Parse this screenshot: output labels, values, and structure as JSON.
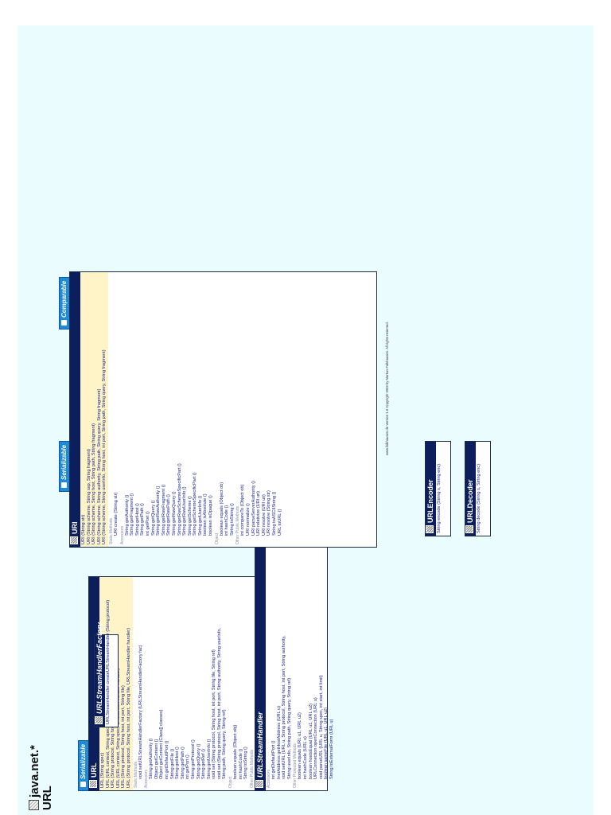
{
  "title": {
    "line1": "java.net.*",
    "line2": "URL"
  },
  "interfaces": {
    "serializable": "Serializable",
    "comparable": "Comparable"
  },
  "url_class": {
    "name": "URL",
    "constructors": [
      "URL (String spec)",
      "URL (URL context, String spec)",
      "URL (String protocol, String host, String file)",
      "URL (URL context, String spec, URLStreamHandler handler)",
      "URL (String protocol, String host, int port, String file)",
      "URL (String protocol, String host, int port, String file, URLStreamHandler handler)"
    ],
    "static_label": "Static Methods",
    "static_methods": [
      "void  setURLStreamHandlerFactory (URLStreamHandlerFactory fac)"
    ],
    "accessors_label": "Accessors",
    "accessors": [
      "String  getAuthority ()",
      "Object  getContent ()",
      "Object  getContent (Class[] classes)",
      "int  getDefaultPort ()",
      "String  getFile ()",
      "String  getHost ()",
      "String  getPath ()",
      "int  getPort ()",
      "String  getProtocol ()",
      "String  getQuery ()",
      "String  getRef ()",
      "String  getUserInfo ()",
      "void  set (String protocol, String host, int port, String file, String ref)",
      "void  set (String protocol, String host, int port, String authority, String userInfo,",
      "String path, String query, String ref)"
    ],
    "object_label": "Object",
    "object_methods": [
      "boolean  equals (Object obj)",
      "int  hashCode ()",
      "String  toString ()"
    ],
    "other_label": "Other Public Methods",
    "other_methods": [
      "URLConnection  openConnection ()",
      "InputStream  openStream ()",
      "boolean  sameFile (URL other)",
      "String  toExternalForm ()"
    ]
  },
  "factory_class": {
    "name": "URLStreamHandlerFactory",
    "methods": [
      "URLStreamHandler  createURLStreamHandler (String protocol)"
    ]
  },
  "handler_class": {
    "name": "URLStreamHandler",
    "accessors_label": "Accessors",
    "accessors": [
      "int  getDefaultPort ()",
      "InetAddress  getHostAddress (URL u)",
      "void  setURL (URL u, String protocol, String host, int port, String authority,",
      "String userInfo, String path, String query, String ref)"
    ],
    "other_label": "Other Protected Methods",
    "other_methods": [
      "boolean  equals (URL u1, URL u2)",
      "int  hashCode (URL u)",
      "boolean  hostsEqual (URL u1, URL u2)",
      "URLConnection  openConnection (URL u)",
      "void  parseURL (URL u, String spec, int start, int limit)",
      "boolean  sameFile (URL u1, URL u2)",
      "String  toExternalForm (URL u)"
    ]
  },
  "uri_class": {
    "name": "URI",
    "constructors": [
      "URI (String str)",
      "URI (String scheme, String ssp, String fragment)",
      "URI (String scheme, String host, String path, String fragment)",
      "URI (String scheme, String authority, String path, String query, String fragment)",
      "URI (String scheme, String userInfo, String host, int port, String path, String query, String fragment)"
    ],
    "static_label": "Static Methods",
    "static_methods": [
      "URI  create (String str)"
    ],
    "accessors_label": "Accessors",
    "accessors": [
      "String  getAuthority ()",
      "String  getFragment ()",
      "String  getHost ()",
      "String  getPath ()",
      "int  getPort ()",
      "String  getQuery ()",
      "String  getRawAuthority ()",
      "String  getRawFragment ()",
      "String  getRawPath ()",
      "String  getRawQuery ()",
      "String  getRawSchemeSpecificPart ()",
      "String  getRawUserInfo ()",
      "String  getScheme ()",
      "String  getSchemeSpecificPart ()",
      "String  getUserInfo ()",
      "boolean  isAbsolute ()",
      "boolean  isOpaque ()"
    ],
    "object_label": "Object",
    "object_methods": [
      "boolean  equals (Object ob)",
      "int  hashCode ()",
      "String  toString ()"
    ],
    "other_label": "Other Public Methods",
    "other_methods": [
      "int  compareTo (Object ob)",
      "URI  normalize ()",
      "URI  parseServerAuthority ()",
      "URI  relativize (URI uri)",
      "URI  resolve (URI uri)",
      "URI  resolve (String str)",
      "String  toASCIIString ()",
      "URL  toURL ()"
    ]
  },
  "encoder_class": {
    "name": "URLEncoder",
    "methods": [
      "String  encode (String s, String enc)"
    ]
  },
  "decoder_class": {
    "name": "URLDecoder",
    "methods": [
      "String  decode (String s, String enc)"
    ]
  },
  "footer": "www.falkhausen.de Version 1.0 Copyright 2003 by Markus Falkhausen. All rights reserved."
}
